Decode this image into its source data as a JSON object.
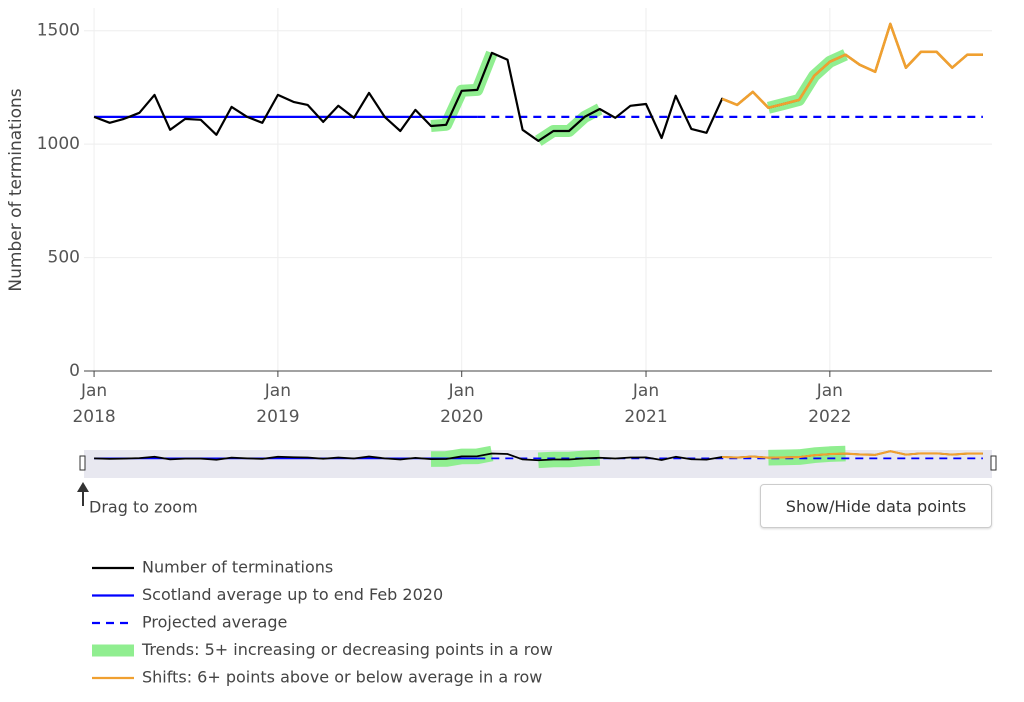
{
  "chart_data": {
    "type": "line",
    "y_label": "Number of terminations",
    "x": [
      "2018-01",
      "2018-02",
      "2018-03",
      "2018-04",
      "2018-05",
      "2018-06",
      "2018-07",
      "2018-08",
      "2018-09",
      "2018-10",
      "2018-11",
      "2018-12",
      "2019-01",
      "2019-02",
      "2019-03",
      "2019-04",
      "2019-05",
      "2019-06",
      "2019-07",
      "2019-08",
      "2019-09",
      "2019-10",
      "2019-11",
      "2019-12",
      "2020-01",
      "2020-02",
      "2020-03",
      "2020-04",
      "2020-05",
      "2020-06",
      "2020-07",
      "2020-08",
      "2020-09",
      "2020-10",
      "2020-11",
      "2020-12",
      "2021-01",
      "2021-02",
      "2021-03",
      "2021-04",
      "2021-05",
      "2021-06",
      "2021-07",
      "2021-08",
      "2021-09",
      "2021-10",
      "2021-11",
      "2021-12",
      "2022-01",
      "2022-02",
      "2022-03",
      "2022-04",
      "2022-05",
      "2022-06",
      "2022-07",
      "2022-08",
      "2022-09",
      "2022-10",
      "2022-11"
    ],
    "series": [
      {
        "name": "Trends: 5+ increasing or decreasing points in a row",
        "color": "#90ee90",
        "role": "trend",
        "values": [
          null,
          null,
          null,
          null,
          null,
          null,
          null,
          null,
          null,
          null,
          null,
          null,
          null,
          null,
          null,
          null,
          null,
          null,
          null,
          null,
          null,
          null,
          1080,
          1085,
          1235,
          1239,
          1402,
          null,
          null,
          1014,
          1058,
          1058,
          1120,
          1155,
          null,
          null,
          null,
          null,
          null,
          null,
          null,
          null,
          null,
          null,
          1160,
          1177,
          1195,
          1301,
          1363,
          1394,
          null,
          null,
          null,
          null,
          null,
          null,
          null,
          null,
          null
        ]
      },
      {
        "name": "Number of terminations",
        "color": "#000000",
        "role": "data",
        "values": [
          1120,
          1094,
          1111,
          1138,
          1217,
          1063,
          1111,
          1107,
          1041,
          1164,
          1120,
          1094,
          1217,
          1186,
          1173,
          1098,
          1169,
          1116,
          1226,
          1120,
          1058,
          1151,
          1080,
          1085,
          1235,
          1239,
          1402,
          1372,
          1063,
          1014,
          1058,
          1058,
          1120,
          1155,
          1116,
          1169,
          1177,
          1027,
          1213,
          1067,
          1050,
          1200,
          1173,
          1230,
          1160,
          1177,
          1195,
          1301,
          1363,
          1394,
          1350,
          1319,
          1530,
          1337,
          1407,
          1407,
          1337,
          1394,
          1394
        ]
      },
      {
        "name": "Scotland average up to end Feb 2020",
        "color": "#0000ff",
        "role": "avg",
        "values": [
          1120,
          1120,
          1120,
          1120,
          1120,
          1120,
          1120,
          1120,
          1120,
          1120,
          1120,
          1120,
          1120,
          1120,
          1120,
          1120,
          1120,
          1120,
          1120,
          1120,
          1120,
          1120,
          1120,
          1120,
          1120,
          1120,
          null,
          null,
          null,
          null,
          null,
          null,
          null,
          null,
          null,
          null,
          null,
          null,
          null,
          null,
          null,
          null,
          null,
          null,
          null,
          null,
          null,
          null,
          null,
          null,
          null,
          null,
          null,
          null,
          null,
          null,
          null,
          null,
          null
        ]
      },
      {
        "name": "Projected average",
        "color": "#0000ff",
        "role": "projected",
        "values": [
          null,
          null,
          null,
          null,
          null,
          null,
          null,
          null,
          null,
          null,
          null,
          null,
          null,
          null,
          null,
          null,
          null,
          null,
          null,
          null,
          null,
          null,
          null,
          null,
          null,
          1120,
          1120,
          1120,
          1120,
          1120,
          1120,
          1120,
          1120,
          1120,
          1120,
          1120,
          1120,
          1120,
          1120,
          1120,
          1120,
          1120,
          1120,
          1120,
          1120,
          1120,
          1120,
          1120,
          1120,
          1120,
          1120,
          1120,
          1120,
          1120,
          1120,
          1120,
          1120,
          1120,
          1120
        ]
      },
      {
        "name": "Shifts: 6+ points above or below average in a row",
        "color": "#f0a030",
        "role": "shift",
        "values": [
          null,
          null,
          null,
          null,
          null,
          null,
          null,
          null,
          null,
          null,
          null,
          null,
          null,
          null,
          null,
          null,
          null,
          null,
          null,
          null,
          null,
          null,
          null,
          null,
          null,
          null,
          null,
          null,
          null,
          null,
          null,
          null,
          null,
          null,
          null,
          null,
          null,
          null,
          null,
          null,
          null,
          1200,
          1173,
          1230,
          1160,
          1177,
          1195,
          1301,
          1363,
          1394,
          1350,
          1319,
          1530,
          1337,
          1407,
          1407,
          1337,
          1394,
          1394
        ]
      }
    ],
    "legend_order": [
      1,
      2,
      3,
      0,
      4
    ],
    "xlim": [
      "2017-12-12",
      "2022-11-19"
    ],
    "xticks": [
      {
        "value": "2018-01",
        "label": "Jan 2018"
      },
      {
        "value": "2019-01",
        "label": "Jan 2019"
      },
      {
        "value": "2020-01",
        "label": "Jan 2020"
      },
      {
        "value": "2021-01",
        "label": "Jan 2021"
      },
      {
        "value": "2022-01",
        "label": "Jan 2022"
      }
    ],
    "ylim": [
      0,
      1600
    ],
    "yticks": [
      0,
      500,
      1000,
      1500
    ],
    "grid": true,
    "legend": "bottom-left",
    "slider_hint": "Drag to zoom",
    "button": "Show/Hide data points"
  }
}
